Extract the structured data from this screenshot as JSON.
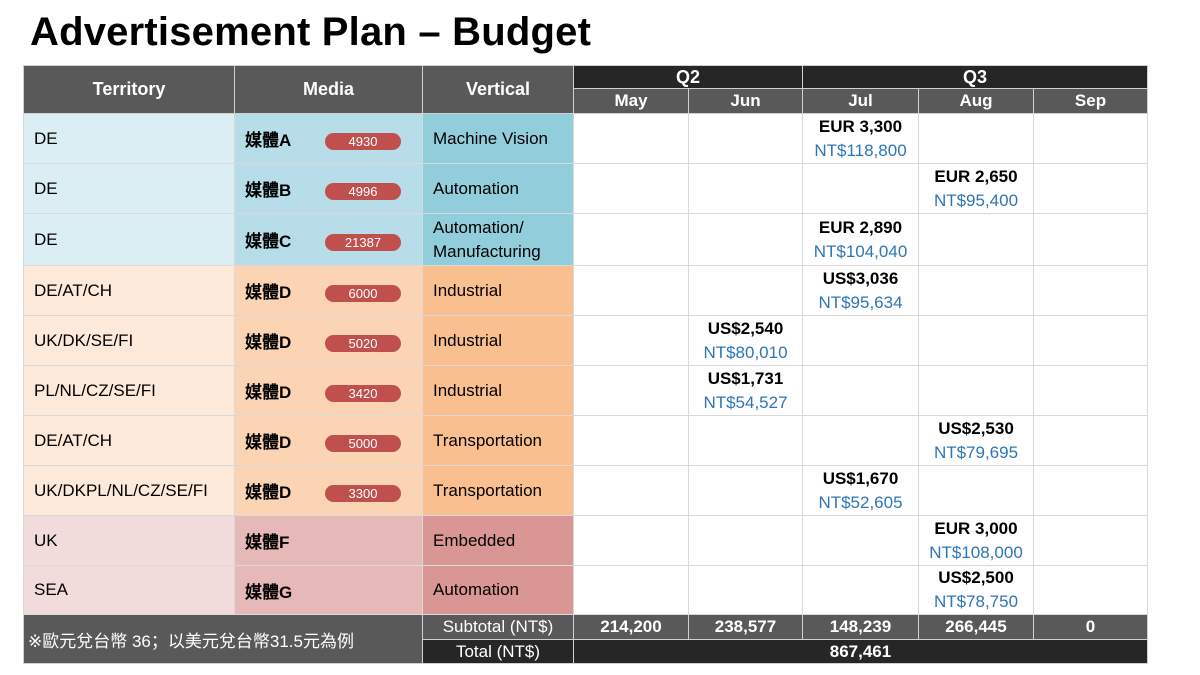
{
  "title": "Advertisement Plan – Budget",
  "headers": {
    "territory": "Territory",
    "media": "Media",
    "vertical": "Vertical",
    "q2": "Q2",
    "q3": "Q3",
    "months": [
      "May",
      "Jun",
      "Jul",
      "Aug",
      "Sep"
    ]
  },
  "rows": [
    {
      "territory": "DE",
      "media": "媒體A",
      "badge": "4930",
      "vertical": "Machine Vision",
      "month": "Jul",
      "amount": "EUR 3,300",
      "nt": "NT$118,800"
    },
    {
      "territory": "DE",
      "media": "媒體B",
      "badge": "4996",
      "vertical": "Automation",
      "month": "Aug",
      "amount": "EUR 2,650",
      "nt": "NT$95,400"
    },
    {
      "territory": "DE",
      "media": "媒體C",
      "badge": "21387",
      "vertical": "Automation/",
      "vertical2": "Manufacturing",
      "month": "Jul",
      "amount": "EUR 2,890",
      "nt": "NT$104,040"
    },
    {
      "territory": "DE/AT/CH",
      "media": "媒體D",
      "badge": "6000",
      "vertical": "Industrial",
      "month": "Jul",
      "amount": "US$3,036",
      "nt": "NT$95,634"
    },
    {
      "territory": "UK/DK/SE/FI",
      "media": "媒體D",
      "badge": "5020",
      "vertical": "Industrial",
      "month": "Jun",
      "amount": "US$2,540",
      "nt": "NT$80,010"
    },
    {
      "territory": "PL/NL/CZ/SE/FI",
      "media": "媒體D",
      "badge": "3420",
      "vertical": "Industrial",
      "month": "Jun",
      "amount": "US$1,731",
      "nt": "NT$54,527"
    },
    {
      "territory": "DE/AT/CH",
      "media": "媒體D",
      "badge": "5000",
      "vertical": "Transportation",
      "month": "Aug",
      "amount": "US$2,530",
      "nt": "NT$79,695"
    },
    {
      "territory": "UK/DKPL/NL/CZ/SE/FI",
      "media": "媒體D",
      "badge": "3300",
      "vertical": "Transportation",
      "month": "Jul",
      "amount": "US$1,670",
      "nt": "NT$52,605"
    },
    {
      "territory": "UK",
      "media": "媒體F",
      "badge": "",
      "vertical": "Embedded",
      "month": "Aug",
      "amount": "EUR 3,000",
      "nt": "NT$108,000"
    },
    {
      "territory": "SEA",
      "media": "媒體G",
      "badge": "",
      "vertical": "Automation",
      "month": "Aug",
      "amount": "US$2,500",
      "nt": "NT$78,750"
    }
  ],
  "note": "※歐元兌台幣 36；以美元兌台幣31.5元為例",
  "subtotal": {
    "label": "Subtotal (NT$)",
    "values": [
      "214,200",
      "238,577",
      "148,239",
      "266,445",
      "0"
    ]
  },
  "total": {
    "label": "Total (NT$)",
    "value": "867,461"
  }
}
